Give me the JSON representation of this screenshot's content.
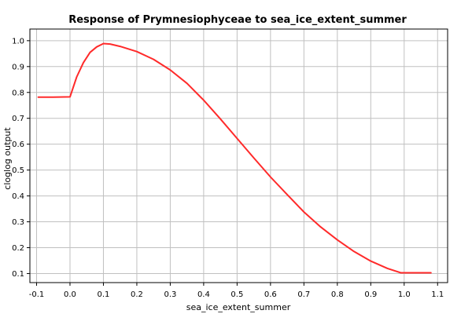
{
  "chart_data": {
    "type": "line",
    "title": "Response of Prymnesiophyceae to sea_ice_extent_summer",
    "xlabel": "sea_ice_extent_summer",
    "ylabel": "cloglog output",
    "xlim": [
      -0.12,
      1.13
    ],
    "ylim": [
      0.065,
      1.045
    ],
    "xticks": [
      -0.1,
      0.0,
      0.1,
      0.2,
      0.3,
      0.4,
      0.5,
      0.6,
      0.7,
      0.8,
      0.9,
      1.0,
      1.1
    ],
    "xtick_labels": [
      "-0.1",
      "0.0",
      "0.1",
      "0.2",
      "0.3",
      "0.4",
      "0.5",
      "0.6",
      "0.7",
      "0.8",
      "0.9",
      "1.0",
      "1.1"
    ],
    "yticks": [
      0.1,
      0.2,
      0.3,
      0.4,
      0.5,
      0.6,
      0.7,
      0.8,
      0.9,
      1.0
    ],
    "ytick_labels": [
      "0.1",
      "0.2",
      "0.3",
      "0.4",
      "0.5",
      "0.6",
      "0.7",
      "0.8",
      "0.9",
      "1.0"
    ],
    "grid": true,
    "series": [
      {
        "color": "#ff2a2a",
        "x": [
          -0.095,
          -0.05,
          0.0,
          0.02,
          0.04,
          0.06,
          0.08,
          0.1,
          0.12,
          0.15,
          0.2,
          0.25,
          0.3,
          0.35,
          0.4,
          0.45,
          0.5,
          0.55,
          0.6,
          0.65,
          0.7,
          0.75,
          0.8,
          0.85,
          0.9,
          0.95,
          0.99,
          1.02,
          1.05,
          1.08
        ],
        "y": [
          0.782,
          0.782,
          0.783,
          0.86,
          0.915,
          0.955,
          0.976,
          0.989,
          0.987,
          0.978,
          0.958,
          0.928,
          0.887,
          0.835,
          0.77,
          0.698,
          0.622,
          0.547,
          0.473,
          0.405,
          0.338,
          0.28,
          0.23,
          0.185,
          0.148,
          0.12,
          0.103,
          0.103,
          0.103,
          0.103
        ]
      }
    ]
  }
}
